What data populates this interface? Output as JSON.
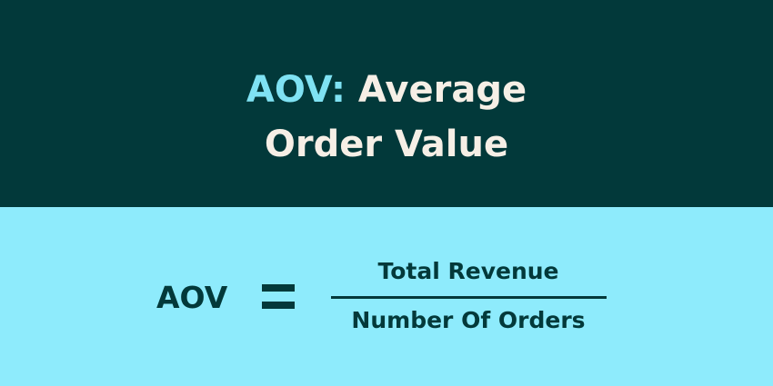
{
  "title": {
    "accent_text": "AOV:",
    "line1_rest": "Average",
    "line2": "Order Value"
  },
  "formula": {
    "lhs": "AOV",
    "operator": "equals-sign",
    "numerator": "Total Revenue",
    "denominator": "Number Of Orders"
  },
  "colors": {
    "top_background": "#02393a",
    "bottom_background": "#8eebfc",
    "accent": "#7fe2f3",
    "title_text": "#f6efe6",
    "formula_text": "#03393a"
  }
}
